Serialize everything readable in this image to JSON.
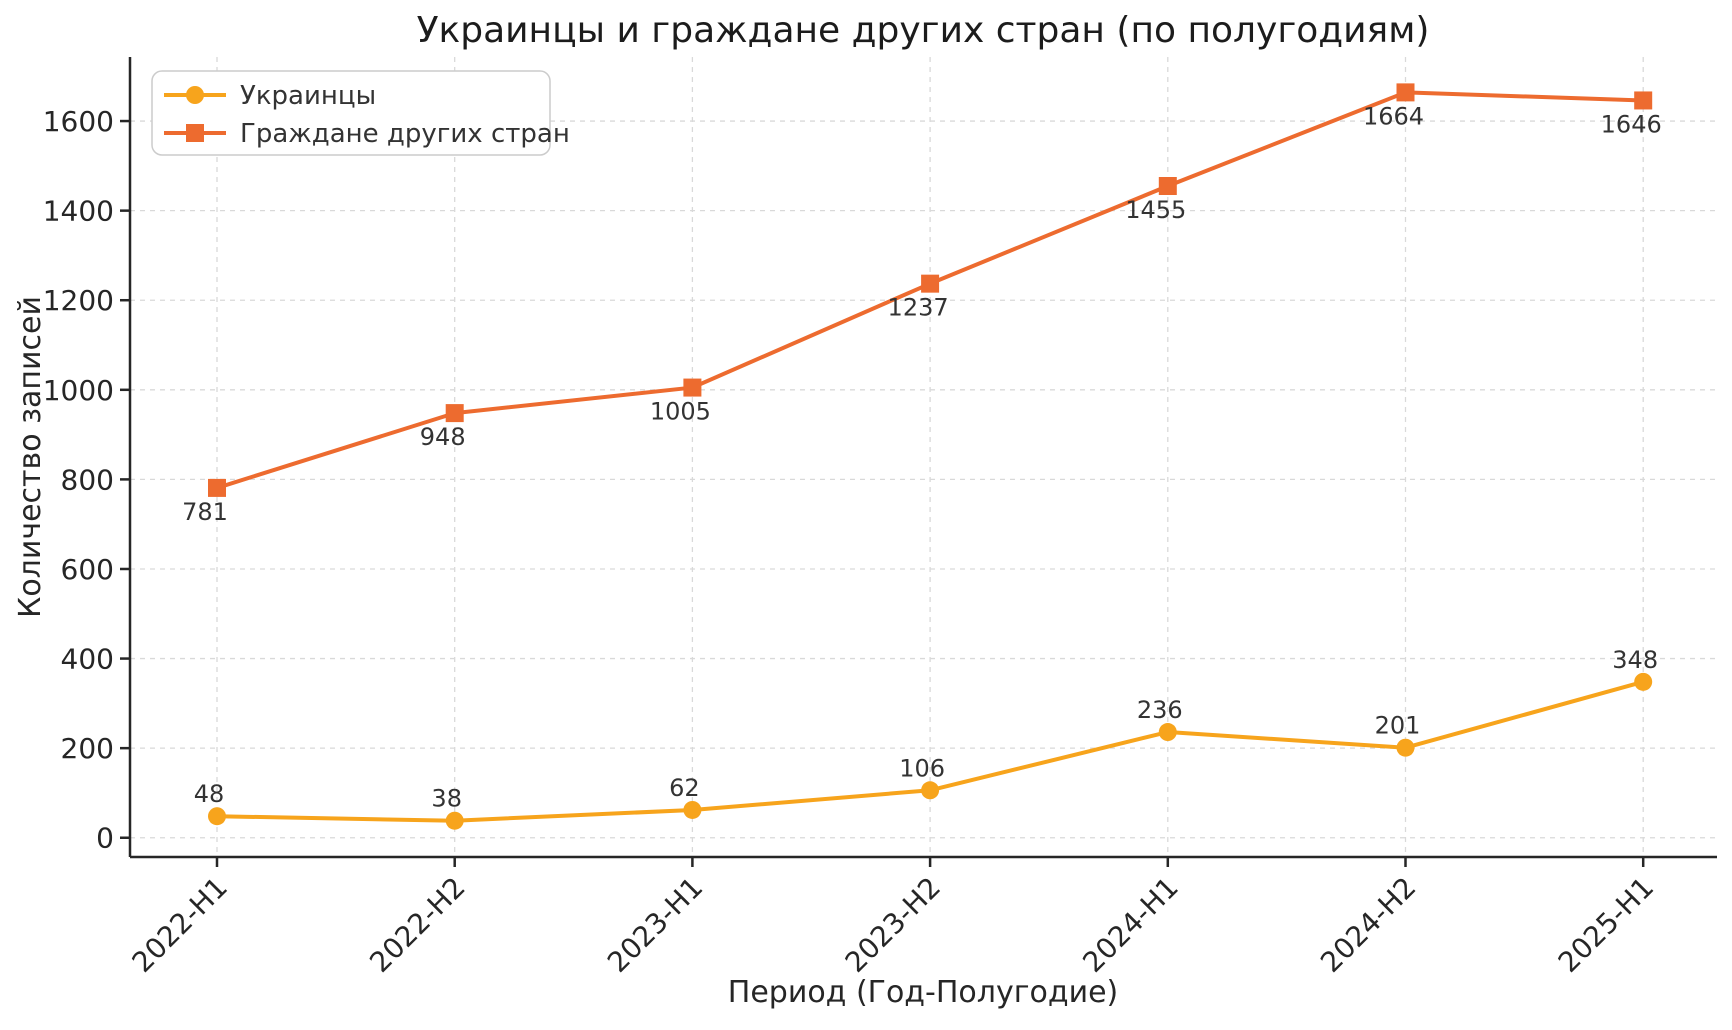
{
  "chart_data": {
    "type": "line",
    "title": "Украинцы и граждане других стран (по полугодиям)",
    "xlabel": "Период (Год-Полугодие)",
    "ylabel": "Количество записей",
    "categories": [
      "2022-H1",
      "2022-H2",
      "2023-H1",
      "2023-H2",
      "2024-H1",
      "2024-H2",
      "2025-H1"
    ],
    "series": [
      {
        "name": "Украинцы",
        "color": "#F7A41C",
        "marker": "circle",
        "values": [
          48,
          38,
          62,
          106,
          236,
          201,
          348
        ],
        "label_side": "above"
      },
      {
        "name": "Граждане других стран",
        "color": "#ED6B2F",
        "marker": "square",
        "values": [
          781,
          948,
          1005,
          1237,
          1455,
          1664,
          1646
        ],
        "label_side": "below"
      }
    ],
    "yticks": [
      0,
      200,
      400,
      600,
      800,
      1000,
      1200,
      1400,
      1600
    ],
    "ylim": [
      -43,
      1743
    ],
    "grid": true,
    "grid_style": "dashed",
    "grid_color": "#d9d9d9",
    "axis_color": "#262626",
    "legend_position": "upper left"
  }
}
